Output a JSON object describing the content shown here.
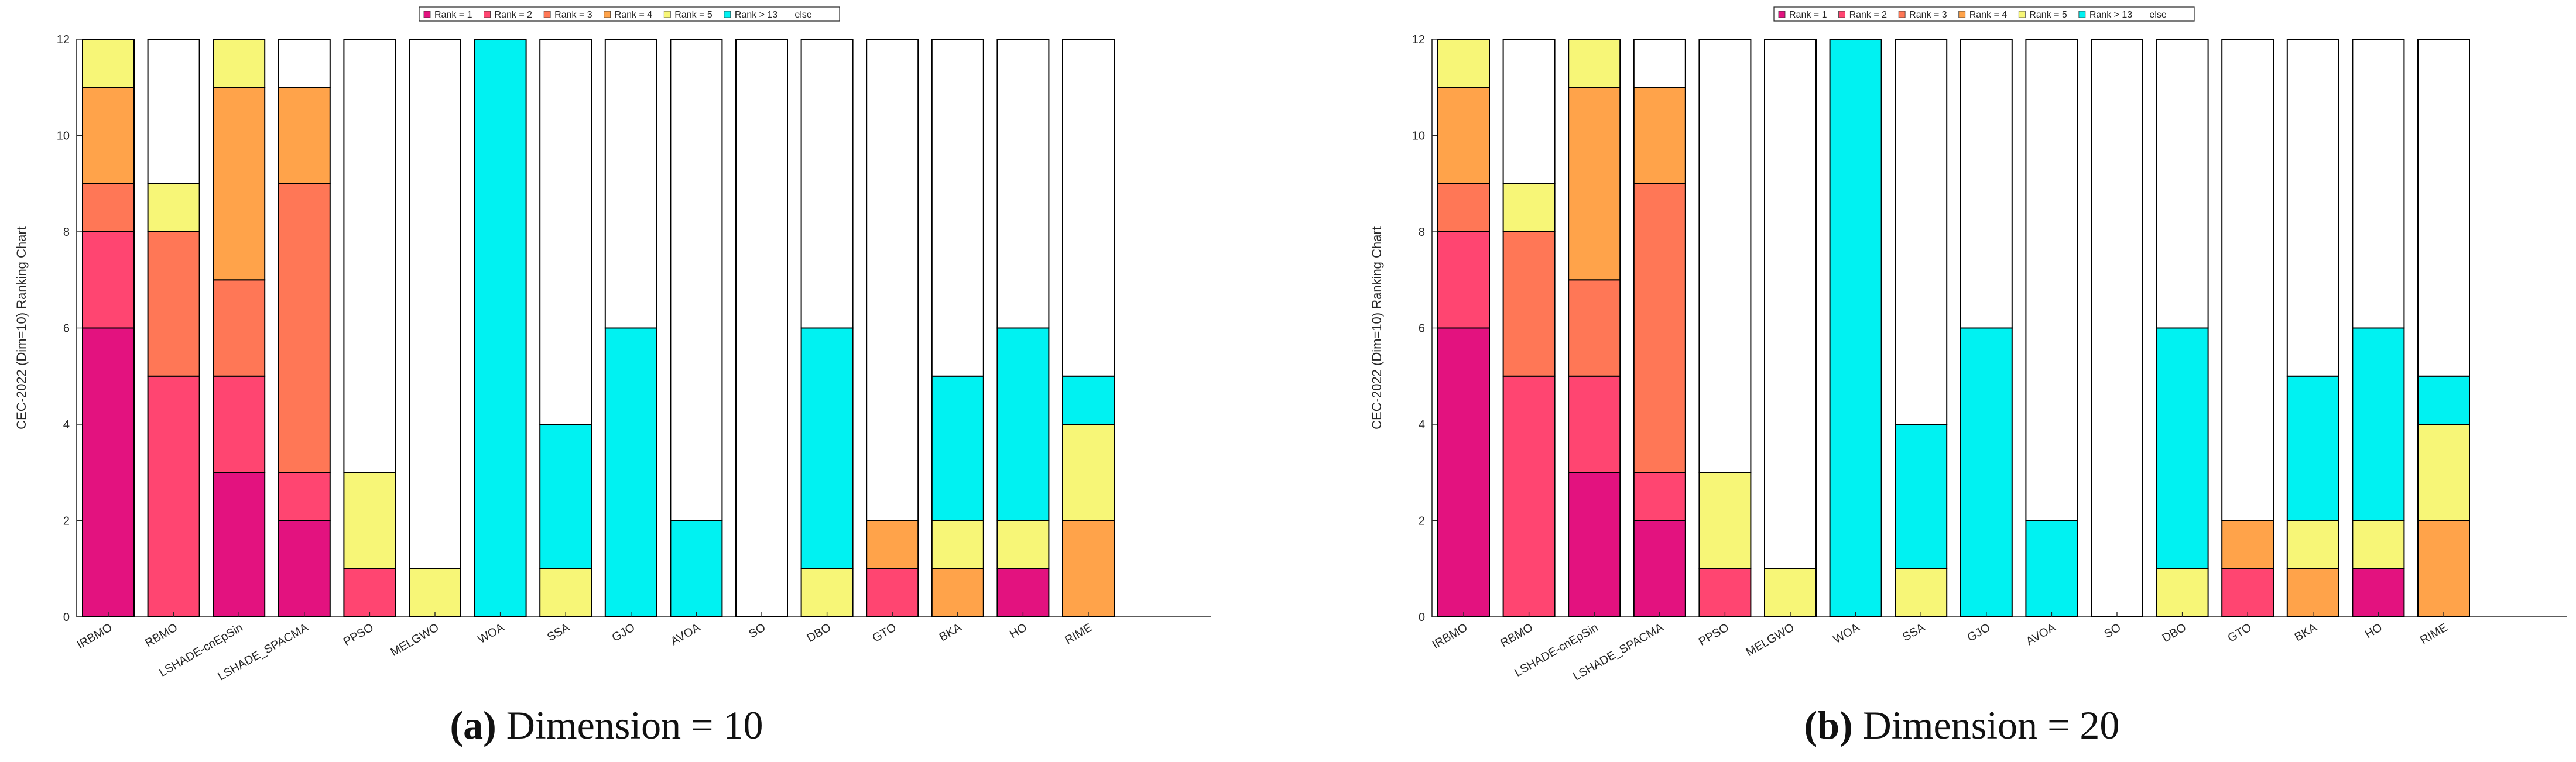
{
  "colors": {
    "rank1": "#e3127f",
    "rank2": "#ff4571",
    "rank3": "#ff7756",
    "rank4": "#ffa34a",
    "rank5": "#f7f677",
    "rank13": "#00f2f2",
    "else": "#ffffff",
    "axis": "#262626"
  },
  "legend": {
    "entries": [
      "Rank = 1",
      "Rank = 2",
      "Rank = 3",
      "Rank = 4",
      "Rank = 5",
      "Rank > 13",
      "else"
    ]
  },
  "chart_data": [
    {
      "type": "bar",
      "stacked": true,
      "ylabel": "CEC-2022 (Dim=10) Ranking Chart",
      "ylim": [
        0,
        12
      ],
      "yticks": [
        "0",
        "2",
        "4",
        "6",
        "8",
        "10",
        "12"
      ],
      "categories": [
        "IRBMO",
        "RBMO",
        "LSHADE-cnEpSin",
        "LSHADE_SPACMA",
        "PPSO",
        "MELGWO",
        "WOA",
        "SSA",
        "GJO",
        "AVOA",
        "SO",
        "DBO",
        "GTO",
        "BKA",
        "HO",
        "RIME"
      ],
      "series": [
        {
          "name": "Rank = 1",
          "values": [
            6,
            0,
            3,
            2,
            0,
            0,
            0,
            0,
            0,
            0,
            0,
            0,
            0,
            0,
            1,
            0
          ]
        },
        {
          "name": "Rank = 2",
          "values": [
            2,
            5,
            2,
            1,
            1,
            0,
            0,
            0,
            0,
            0,
            0,
            0,
            1,
            0,
            0,
            0
          ]
        },
        {
          "name": "Rank = 3",
          "values": [
            1,
            3,
            2,
            6,
            0,
            0,
            0,
            0,
            0,
            0,
            0,
            0,
            0,
            0,
            0,
            0
          ]
        },
        {
          "name": "Rank = 4",
          "values": [
            2,
            0,
            4,
            2,
            0,
            0,
            0,
            0,
            0,
            0,
            0,
            0,
            1,
            1,
            0,
            2
          ]
        },
        {
          "name": "Rank = 5",
          "values": [
            1,
            1,
            1,
            0,
            2,
            1,
            0,
            1,
            0,
            0,
            0,
            1,
            0,
            1,
            1,
            2
          ]
        },
        {
          "name": "Rank > 13",
          "values": [
            0,
            0,
            0,
            0,
            0,
            0,
            12,
            3,
            6,
            2,
            0,
            5,
            0,
            3,
            4,
            1
          ]
        },
        {
          "name": "else",
          "values": [
            0,
            3,
            0,
            1,
            9,
            11,
            0,
            8,
            6,
            10,
            12,
            6,
            10,
            7,
            6,
            7
          ]
        }
      ],
      "caption_label": "(a)",
      "caption_text": " Dimension = 10"
    },
    {
      "type": "bar",
      "stacked": true,
      "ylabel": "CEC-2022 (Dim=10) Ranking Chart",
      "ylim": [
        0,
        12
      ],
      "yticks": [
        "0",
        "2",
        "4",
        "6",
        "8",
        "10",
        "12"
      ],
      "categories": [
        "IRBMO",
        "RBMO",
        "LSHADE-cnEpSin",
        "LSHADE_SPACMA",
        "PPSO",
        "MELGWO",
        "WOA",
        "SSA",
        "GJO",
        "AVOA",
        "SO",
        "DBO",
        "GTO",
        "BKA",
        "HO",
        "RIME"
      ],
      "series": [
        {
          "name": "Rank = 1",
          "values": [
            6,
            0,
            3,
            2,
            0,
            0,
            0,
            0,
            0,
            0,
            0,
            0,
            0,
            0,
            1,
            0
          ]
        },
        {
          "name": "Rank = 2",
          "values": [
            2,
            5,
            2,
            1,
            1,
            0,
            0,
            0,
            0,
            0,
            0,
            0,
            1,
            0,
            0,
            0
          ]
        },
        {
          "name": "Rank = 3",
          "values": [
            1,
            3,
            2,
            6,
            0,
            0,
            0,
            0,
            0,
            0,
            0,
            0,
            0,
            0,
            0,
            0
          ]
        },
        {
          "name": "Rank = 4",
          "values": [
            2,
            0,
            4,
            2,
            0,
            0,
            0,
            0,
            0,
            0,
            0,
            0,
            1,
            1,
            0,
            2
          ]
        },
        {
          "name": "Rank = 5",
          "values": [
            1,
            1,
            1,
            0,
            2,
            1,
            0,
            1,
            0,
            0,
            0,
            1,
            0,
            1,
            1,
            2
          ]
        },
        {
          "name": "Rank > 13",
          "values": [
            0,
            0,
            0,
            0,
            0,
            0,
            12,
            3,
            6,
            2,
            0,
            5,
            0,
            3,
            4,
            1
          ]
        },
        {
          "name": "else",
          "values": [
            0,
            3,
            0,
            1,
            9,
            11,
            0,
            8,
            6,
            10,
            12,
            6,
            10,
            7,
            6,
            7
          ]
        }
      ],
      "caption_label": "(b)",
      "caption_text": " Dimension = 20"
    }
  ]
}
